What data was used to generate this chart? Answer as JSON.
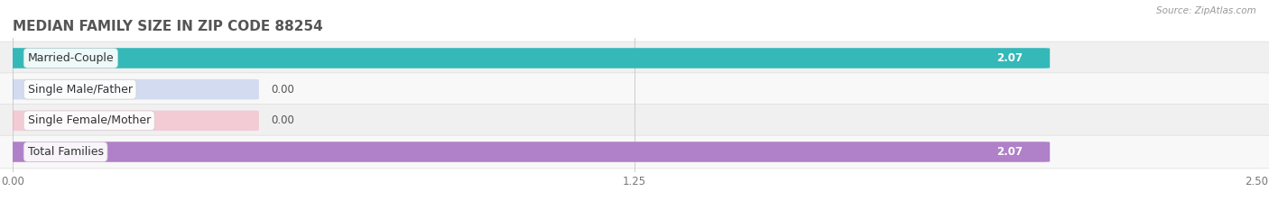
{
  "title": "MEDIAN FAMILY SIZE IN ZIP CODE 88254",
  "source": "Source: ZipAtlas.com",
  "categories": [
    "Married-Couple",
    "Single Male/Father",
    "Single Female/Mother",
    "Total Families"
  ],
  "values": [
    2.07,
    0.0,
    0.0,
    2.07
  ],
  "bar_colors": [
    "#35b8b8",
    "#a8b8e8",
    "#f5a0b5",
    "#b080c8"
  ],
  "xlim": [
    0,
    2.75
  ],
  "data_max": 2.5,
  "xticks": [
    0.0,
    1.25,
    2.5
  ],
  "xtick_labels": [
    "0.00",
    "1.25",
    "2.50"
  ],
  "background_color": "#ffffff",
  "bar_bg_color": "#eeeeee",
  "row_bg_colors": [
    "#f0f0f0",
    "#f8f8f8",
    "#f0f0f0",
    "#f8f8f8"
  ],
  "title_fontsize": 11,
  "label_fontsize": 9,
  "value_fontsize": 8.5,
  "bar_height": 0.62,
  "fig_width": 14.06,
  "fig_height": 2.33
}
